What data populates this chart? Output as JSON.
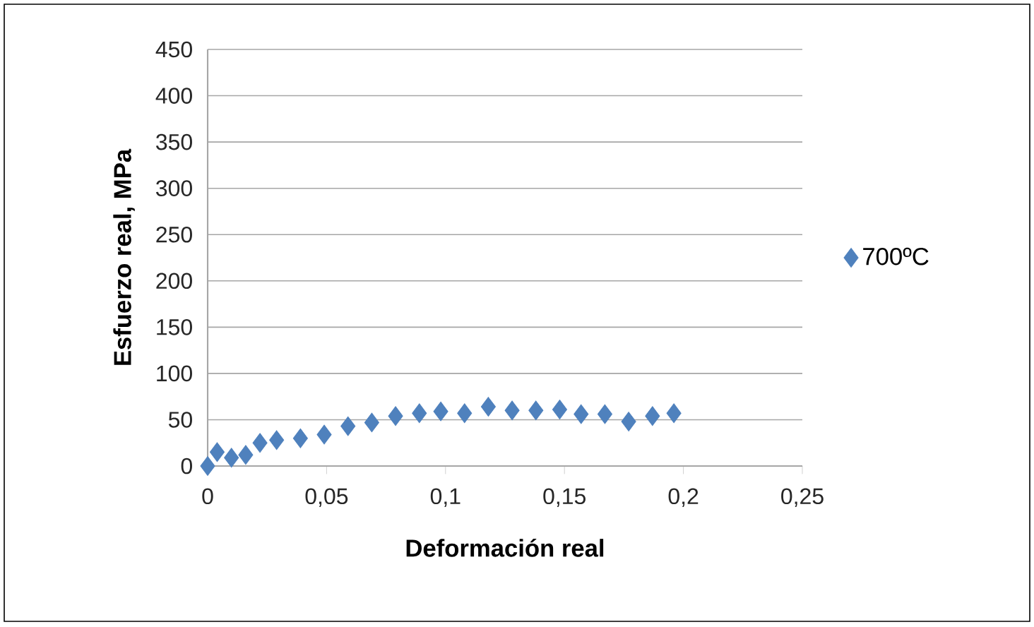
{
  "chart_data": {
    "type": "scatter",
    "xlabel": "Deformación real",
    "ylabel": "Esfuerzo real, MPa",
    "series": [
      {
        "name": "700ºC",
        "color": "#4f81bd",
        "x": [
          0,
          0.004,
          0.01,
          0.016,
          0.022,
          0.029,
          0.039,
          0.049,
          0.059,
          0.069,
          0.079,
          0.089,
          0.098,
          0.108,
          0.118,
          0.128,
          0.138,
          0.148,
          0.157,
          0.167,
          0.177,
          0.187,
          0.196
        ],
        "values": [
          0,
          15,
          9,
          12,
          25,
          28,
          30,
          34,
          43,
          47,
          54,
          57,
          59,
          57,
          64,
          60,
          60,
          61,
          56,
          56,
          48,
          54,
          57
        ]
      }
    ],
    "xlim": [
      0,
      0.25
    ],
    "ylim": [
      0,
      450
    ],
    "xticks": [
      0,
      {
        "value": 0.05,
        "label": "0,05"
      },
      {
        "value": 0.1,
        "label": "0,1"
      },
      {
        "value": 0.15,
        "label": "0,15"
      },
      {
        "value": 0.2,
        "label": "0,2"
      },
      {
        "value": 0.25,
        "label": "0,25"
      }
    ],
    "yticks": [
      0,
      50,
      100,
      150,
      200,
      250,
      300,
      350,
      400,
      450
    ],
    "grid": "y",
    "legend": "right",
    "marker": "diamond"
  }
}
